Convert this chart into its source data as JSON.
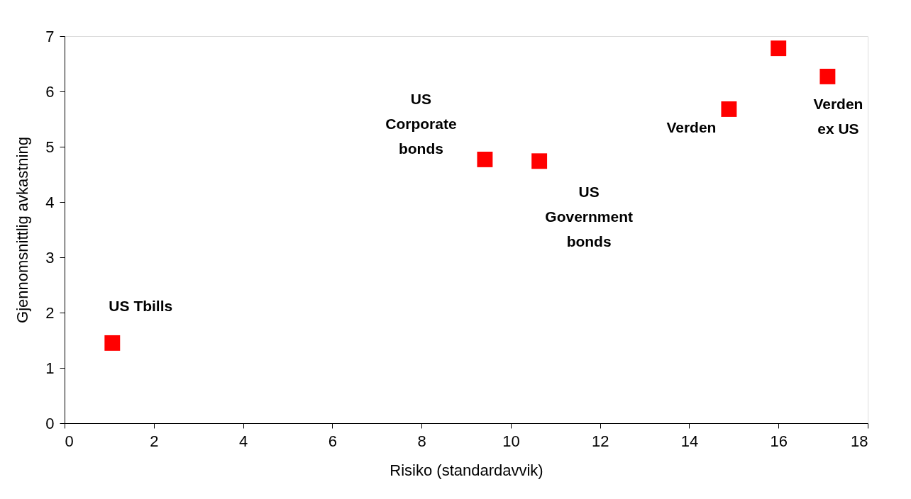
{
  "chart_data": {
    "type": "scatter",
    "xlabel": "Risiko  (standardavvik)",
    "ylabel": "Gjennomsnittlig avkastning",
    "x": [
      1.07,
      9.42,
      10.64,
      14.89,
      16.0,
      17.1
    ],
    "series": [
      {
        "color": "#ff0000",
        "values": [
          1.45,
          4.77,
          4.74,
          5.68,
          6.78,
          6.27
        ]
      }
    ],
    "xlim": [
      0,
      18
    ],
    "xticks": [
      0,
      2,
      4,
      6,
      8,
      10,
      12,
      14,
      16,
      18
    ],
    "ylim": [
      0,
      7
    ],
    "yticks": [
      0,
      1,
      2,
      3,
      4,
      5,
      6,
      7
    ],
    "marker": "square",
    "grid": false,
    "legend": false,
    "annotations": [
      {
        "text": "US Tbills",
        "x": 1.07,
        "y": 1.45
      },
      {
        "text": "US\nCorporate\nbonds",
        "x": 9.42,
        "y": 4.77
      },
      {
        "text": "US\nGovernment\nbonds",
        "x": 10.64,
        "y": 4.74
      },
      {
        "text": "Verden",
        "x": 14.89,
        "y": 5.68
      },
      {
        "text": "Verden\nex US",
        "x": 17.1,
        "y": 6.27
      }
    ]
  }
}
